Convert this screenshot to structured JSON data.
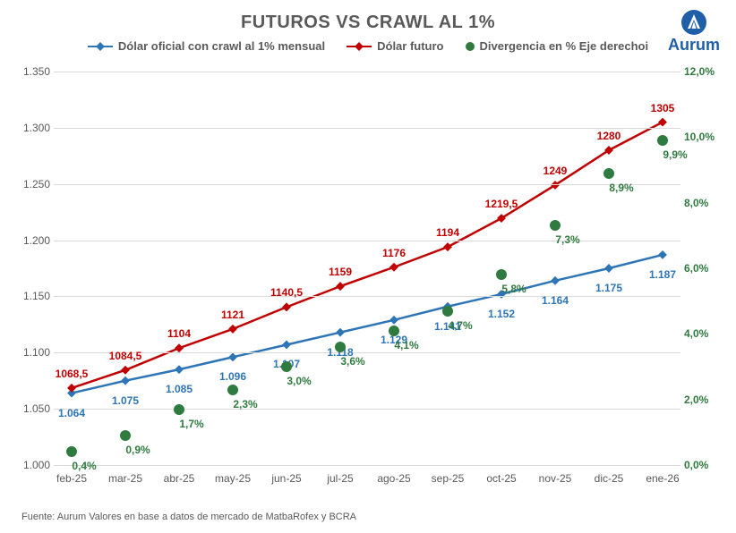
{
  "title": "FUTUROS VS CRAWL AL 1%",
  "logo": {
    "text": "Aurum",
    "icon_bg": "#1f5fa8",
    "icon_fg": "#ffffff"
  },
  "source": "Fuente: Aurum Valores en base a datos de mercado de MatbaRofex y BCRA",
  "colors": {
    "oficial": "#2e75b6",
    "futuro": "#c00000",
    "divergencia": "#2f7a3e",
    "grid": "#d9d9d9",
    "text": "#595959",
    "right_axis": "#2f7a3e"
  },
  "legend": {
    "oficial": "Dólar oficial con crawl al 1% mensual",
    "futuro": "Dólar futuro",
    "divergencia": "Divergencia en % Eje derechoi"
  },
  "chart": {
    "type": "dual-axis-line-scatter",
    "categories": [
      "feb-25",
      "mar-25",
      "abr-25",
      "may-25",
      "jun-25",
      "jul-25",
      "ago-25",
      "sep-25",
      "oct-25",
      "nov-25",
      "dic-25",
      "ene-26"
    ],
    "left_axis": {
      "min": 1000,
      "max": 1350,
      "step": 50
    },
    "right_axis": {
      "min": 0.0,
      "max": 12.0,
      "step": 2.0,
      "suffix": "%",
      "decimal_sep": ","
    },
    "series": {
      "oficial": {
        "values": [
          1064,
          1075,
          1085,
          1096,
          1107,
          1118,
          1129,
          1141,
          1152,
          1164,
          1175,
          1187
        ],
        "labels": [
          "1.064",
          "1.075",
          "1.085",
          "1.096",
          "1.107",
          "1.118",
          "1.129",
          "1.141",
          "1.152",
          "1.164",
          "1.175",
          "1.187"
        ],
        "line_width": 2.5,
        "marker": "diamond",
        "label_offset_y": 22
      },
      "futuro": {
        "values": [
          1068.5,
          1084.5,
          1104,
          1121,
          1140.5,
          1159,
          1176,
          1194,
          1219.5,
          1249,
          1280,
          1305
        ],
        "labels": [
          "1068,5",
          "1084,5",
          "1104",
          "1121",
          "1140,5",
          "1159",
          "1176",
          "1194",
          "1219,5",
          "1249",
          "1280",
          "1305"
        ],
        "line_width": 2.5,
        "marker": "diamond",
        "label_offset_y": -16
      },
      "divergencia": {
        "values": [
          0.4,
          0.9,
          1.7,
          2.3,
          3.0,
          3.6,
          4.1,
          4.7,
          5.8,
          7.3,
          8.9,
          9.9
        ],
        "labels": [
          "0,4%",
          "0,9%",
          "1,7%",
          "2,3%",
          "3,0%",
          "3,6%",
          "4,1%",
          "4,7%",
          "5,8%",
          "7,3%",
          "8,9%",
          "9,9%"
        ],
        "marker_radius": 6,
        "label_offset_y": 16
      }
    }
  }
}
